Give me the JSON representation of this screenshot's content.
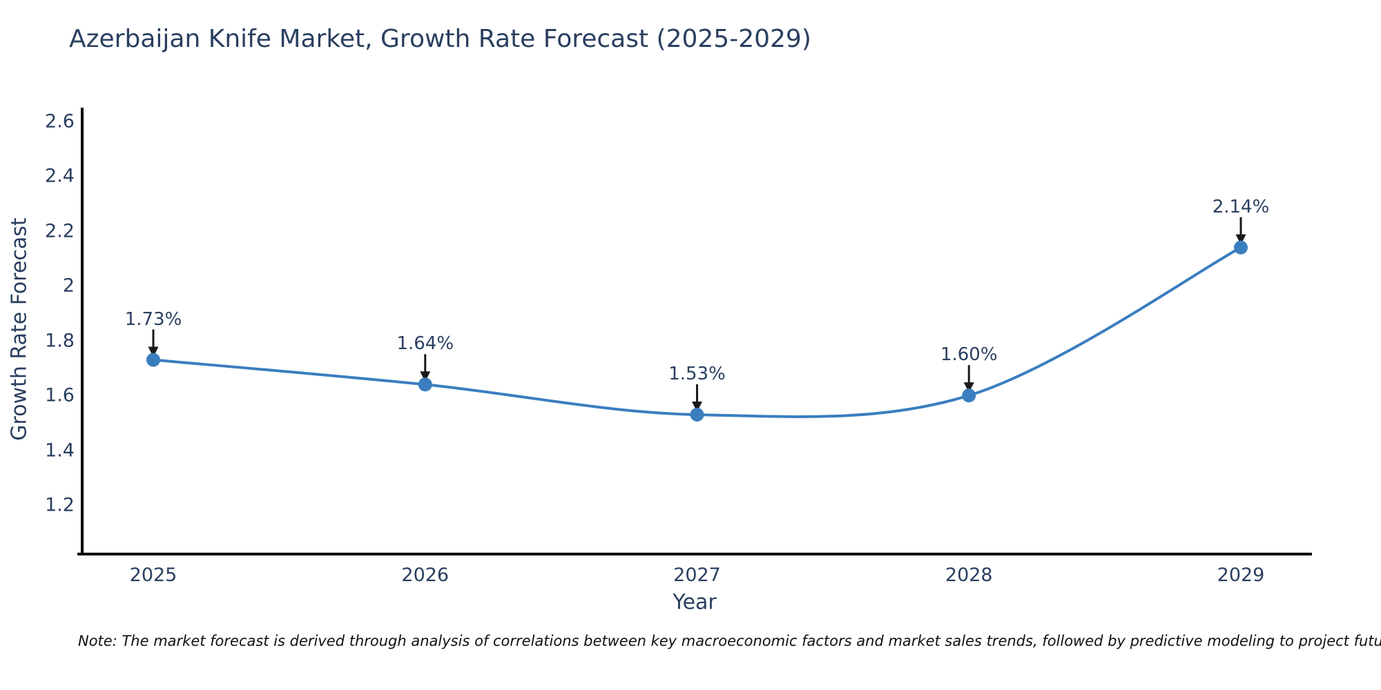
{
  "title": "Azerbaijan Knife Market, Growth Rate Forecast (2025-2029)",
  "note": "Note: The market forecast is derived through analysis of correlations between key macroeconomic factors and market sales trends, followed by predictive modeling to project future sales",
  "chart_data": {
    "type": "line",
    "title": "Azerbaijan Knife Market, Growth Rate Forecast (2025-2029)",
    "xlabel": "Year",
    "ylabel": "Growth Rate Forecast",
    "categories": [
      "2025",
      "2026",
      "2027",
      "2028",
      "2029"
    ],
    "series": [
      {
        "name": "Growth Rate Forecast",
        "values": [
          1.73,
          1.64,
          1.53,
          1.6,
          2.14
        ],
        "point_labels": [
          "1.73%",
          "1.64%",
          "1.53%",
          "1.60%",
          "2.14%"
        ]
      }
    ],
    "line_shape": "spline",
    "markers": true,
    "grid": false,
    "legend": "none",
    "ylim": [
      1.02,
      2.65
    ],
    "ytick_labels": [
      "2.6",
      "2.4",
      "2.2",
      "2",
      "1.8",
      "1.6",
      "1.4",
      "1.2"
    ],
    "ytick_values": [
      2.6,
      2.4,
      2.2,
      2.0,
      1.8,
      1.6,
      1.4,
      1.2
    ],
    "colors": {
      "line": "#3a7ebf",
      "marker": "#3a7ebf",
      "axis": "#000000",
      "text": "#2a3f5f",
      "arrow": "#1a1a1a",
      "background": "#ffffff"
    }
  }
}
